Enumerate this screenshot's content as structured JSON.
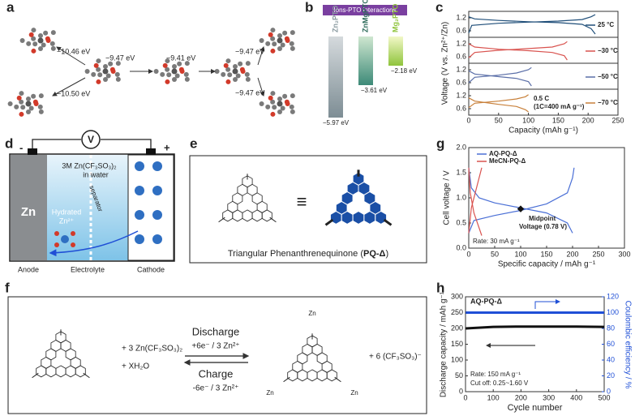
{
  "panels": {
    "a": {
      "label": "a",
      "energies": [
        "−10.46 eV",
        "−10.50 eV",
        "−9.47 eV",
        "−9.41 eV",
        "−9.47 eV",
        "−9.47 eV"
      ]
    },
    "b": {
      "label": "b",
      "title": "Ions-PTO interactions",
      "species": [
        "Zn₂PTO",
        "ZnMgPTO",
        "Mg₂PTO"
      ],
      "energies": [
        "−5.97 eV",
        "−3.61 eV",
        "−2.18 eV"
      ]
    },
    "c": {
      "label": "c",
      "type": "line",
      "ylabel": "Voltage (V vs. Zn²⁺/Zn)",
      "xlabel": "Capacity (mAh g⁻¹)",
      "xlim": [
        0,
        250
      ],
      "xticks": [
        0,
        50,
        100,
        150,
        200,
        250
      ],
      "ylim": [
        0.3,
        1.5
      ],
      "subplots": [
        {
          "temp": "25 °C",
          "color": "#1f4e79",
          "yticks": [
            0.6,
            1.2
          ],
          "curves": [
            {
              "x": [
                0,
                10,
                50,
                100,
                150,
                190,
                205,
                212
              ],
              "y": [
                1.25,
                1.15,
                1.08,
                1.02,
                0.98,
                0.9,
                0.7,
                0.45
              ]
            },
            {
              "x": [
                0,
                5,
                50,
                100,
                150,
                190,
                205,
                212
              ],
              "y": [
                0.5,
                0.85,
                0.95,
                1.0,
                1.05,
                1.12,
                1.25,
                1.35
              ]
            }
          ]
        },
        {
          "temp": "−30 °C",
          "color": "#d9534f",
          "yticks": [
            0.6,
            1.2
          ],
          "curves": [
            {
              "x": [
                0,
                10,
                50,
                100,
                140,
                160,
                165
              ],
              "y": [
                1.2,
                1.05,
                0.95,
                0.88,
                0.8,
                0.65,
                0.45
              ]
            },
            {
              "x": [
                0,
                10,
                50,
                100,
                140,
                160,
                165
              ],
              "y": [
                0.55,
                0.8,
                0.9,
                0.98,
                1.05,
                1.2,
                1.3
              ]
            }
          ]
        },
        {
          "temp": "−50 °C",
          "color": "#5b6fa8",
          "yticks": [
            0.6,
            1.2
          ],
          "curves": [
            {
              "x": [
                0,
                10,
                50,
                80,
                100,
                105
              ],
              "y": [
                1.15,
                1.0,
                0.88,
                0.8,
                0.65,
                0.45
              ]
            },
            {
              "x": [
                0,
                10,
                50,
                80,
                100,
                105
              ],
              "y": [
                0.6,
                0.85,
                0.95,
                1.05,
                1.2,
                1.3
              ]
            }
          ]
        },
        {
          "temp": "−70 °C",
          "color": "#c8803a",
          "yticks": [
            0.6,
            1.2
          ],
          "curves": [
            {
              "x": [
                0,
                10,
                50,
                80,
                95,
                100
              ],
              "y": [
                1.1,
                0.95,
                0.8,
                0.7,
                0.55,
                0.45
              ]
            },
            {
              "x": [
                0,
                10,
                50,
                80,
                95,
                100
              ],
              "y": [
                0.65,
                0.85,
                0.95,
                1.05,
                1.15,
                1.25
              ]
            }
          ]
        }
      ],
      "note": "0.5 C",
      "note2": "(1C=400 mA g⁻¹)"
    },
    "d": {
      "label": "d",
      "meter": "V",
      "minus": "-",
      "plus": "+",
      "electrolyte": "3M Zn(CF₃SO₃)₂",
      "electrolyte2": "in water",
      "separator": "separator",
      "anode_metal": "Zn",
      "ion": "Hydrated",
      "ion2": "Zn²⁺",
      "zones": [
        "Anode",
        "Electrolyte",
        "Cathode"
      ]
    },
    "e": {
      "label": "e",
      "equiv": "≡",
      "caption_start": "Triangular Phenanthrenequinone (",
      "caption_bold": "PQ-Δ",
      "caption_end": ")"
    },
    "f": {
      "label": "f",
      "reactant1": "+ 3 Zn(CF₃SO₃)₂",
      "reactant2": "+ XH₂O",
      "forward": "Discharge",
      "forward_detail": "+6e⁻ / 3 Zn²⁺",
      "backward": "Charge",
      "backward_detail": "-6e⁻ / 3 Zn²⁺",
      "product": "+ 6 (CF₃SO₃)⁻",
      "metal_labels": [
        "Zn",
        "Zn",
        "Zn"
      ]
    },
    "g": {
      "label": "g",
      "type": "line",
      "ylabel": "Cell voltage / V",
      "xlabel": "Specific capacity / mAh g⁻¹",
      "xlim": [
        0,
        300
      ],
      "xticks": [
        0,
        50,
        100,
        150,
        200,
        250,
        300
      ],
      "ylim": [
        0,
        2
      ],
      "yticks": [
        {
          "value": 0,
          "label": "0.0"
        },
        0.5,
        {
          "value": 1,
          "label": "1.0"
        },
        1.5,
        {
          "value": 2,
          "label": "2.0"
        }
      ],
      "series": [
        {
          "name": "AQ-PQ-Δ",
          "color": "#4a6fd6",
          "curves": [
            {
              "x": [
                0,
                5,
                20,
                50,
                100,
                150,
                190,
                200
              ],
              "y": [
                1.6,
                1.2,
                1.0,
                0.9,
                0.8,
                0.7,
                0.5,
                0.3
              ]
            },
            {
              "x": [
                0,
                10,
                50,
                100,
                150,
                190,
                200,
                203
              ],
              "y": [
                0.3,
                0.55,
                0.65,
                0.75,
                0.88,
                1.1,
                1.4,
                1.6
              ]
            }
          ]
        },
        {
          "name": "MeCN-PQ-Δ",
          "color": "#d9534f",
          "curves": [
            {
              "x": [
                0,
                3,
                10,
                20,
                25
              ],
              "y": [
                1.6,
                1.1,
                0.7,
                0.4,
                0.25
              ]
            },
            {
              "x": [
                0,
                5,
                15,
                25
              ],
              "y": [
                0.3,
                0.8,
                1.2,
                1.6
              ]
            }
          ]
        }
      ],
      "midpoint": {
        "x": 100,
        "y": 0.78
      },
      "midpoint_label": "Midpoint",
      "midpoint_label2": "Voltage (0.78 V)",
      "rate": "Rate: 30 mA g⁻¹"
    },
    "h": {
      "label": "h",
      "type": "line",
      "ylabel": "Discharge capacity / mAh g⁻¹",
      "y2label": "Coulombic efficiency / %",
      "xlabel": "Cycle number",
      "xlim": [
        0,
        500
      ],
      "xticks": [
        0,
        100,
        200,
        300,
        400,
        500
      ],
      "ylim": [
        0,
        300
      ],
      "yticks": [
        0,
        50,
        100,
        150,
        200,
        250,
        300
      ],
      "y2lim": [
        0,
        120
      ],
      "y2ticks": [
        0,
        20,
        40,
        60,
        80,
        100,
        120
      ],
      "series": [
        {
          "color": "#111111",
          "x": [
            1,
            100,
            200,
            300,
            400,
            500
          ],
          "values": [
            200,
            205,
            206,
            206,
            206,
            205
          ]
        },
        {
          "color": "#1f4fd6",
          "axis": "y2",
          "x": [
            1,
            100,
            200,
            300,
            400,
            500
          ],
          "values": [
            100,
            100,
            100,
            100,
            100,
            100
          ]
        }
      ],
      "sample": "AQ-PQ-Δ",
      "rate": "Rate: 150 mA g⁻¹",
      "cutoff": "Cut off: 0.25~1.60 V"
    }
  }
}
